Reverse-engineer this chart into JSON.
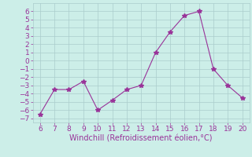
{
  "x": [
    6,
    7,
    8,
    9,
    10,
    11,
    12,
    13,
    14,
    15,
    16,
    17,
    18,
    19,
    20
  ],
  "y": [
    -6.5,
    -3.5,
    -3.5,
    -2.5,
    -6.0,
    -4.8,
    -3.5,
    -3.0,
    1.0,
    3.5,
    5.5,
    6.0,
    -1.0,
    -3.0,
    -4.5
  ],
  "line_color": "#993399",
  "marker": "*",
  "marker_size": 4,
  "bg_color": "#cceee8",
  "grid_color": "#aacccc",
  "xlabel": "Windchill (Refroidissement éolien,°C)",
  "xlabel_color": "#993399",
  "xlabel_fontsize": 7,
  "tick_color": "#993399",
  "tick_fontsize": 6.5,
  "xlim": [
    5.5,
    20.5
  ],
  "ylim": [
    -7.5,
    7.0
  ],
  "yticks": [
    -7,
    -6,
    -5,
    -4,
    -3,
    -2,
    -1,
    0,
    1,
    2,
    3,
    4,
    5,
    6
  ],
  "xticks": [
    6,
    7,
    8,
    9,
    10,
    11,
    12,
    13,
    14,
    15,
    16,
    17,
    18,
    19,
    20
  ]
}
